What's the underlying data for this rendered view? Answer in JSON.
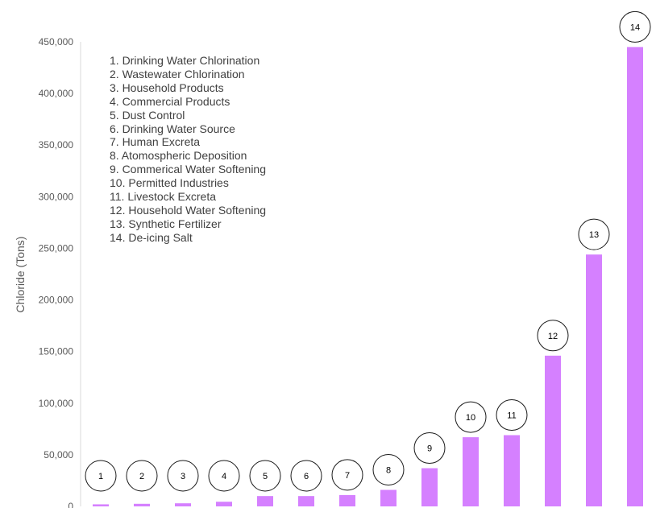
{
  "chart_data": {
    "type": "bar",
    "ylabel": "Chloride (Tons)",
    "xlabel": "",
    "ylim": [
      0,
      450000
    ],
    "yticks": [
      0,
      50000,
      100000,
      150000,
      200000,
      250000,
      300000,
      350000,
      400000,
      450000
    ],
    "ytick_labels": [
      "0",
      "50,000",
      "100,000",
      "150,000",
      "200,000",
      "250,000",
      "300,000",
      "350,000",
      "400,000",
      "450,000"
    ],
    "categories": [
      "1",
      "2",
      "3",
      "4",
      "5",
      "6",
      "7",
      "8",
      "9",
      "10",
      "11",
      "12",
      "13",
      "14"
    ],
    "values": [
      2000,
      2500,
      3000,
      4500,
      10000,
      10000,
      11000,
      16000,
      37000,
      67000,
      69000,
      146000,
      244000,
      445000
    ],
    "bar_color": "#d580ff",
    "grid": false,
    "legend_items": [
      "1. Drinking Water Chlorination",
      "2. Wastewater Chlorination",
      "3. Household Products",
      "4. Commercial Products",
      "5. Dust Control",
      "6. Drinking Water Source",
      "7. Human Excreta",
      "8. Atomospheric Deposition",
      "9. Commerical Water Softening",
      "10. Permitted Industries",
      "11. Livestock Excreta",
      "12. Household Water Softening",
      "13. Synthetic Fertilizer",
      "14. De-icing Salt"
    ]
  }
}
